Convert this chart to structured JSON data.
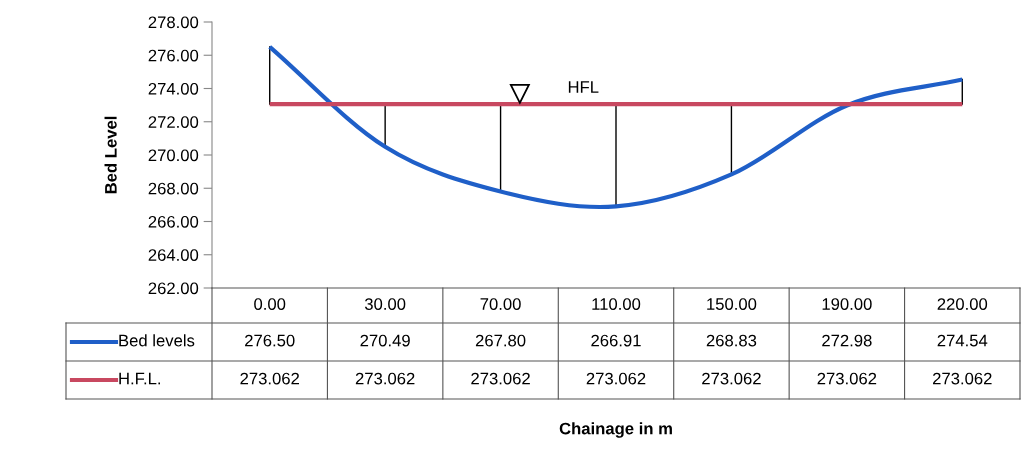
{
  "chart_data": {
    "type": "line",
    "ylabel": "Bed Level",
    "categories": [
      "0.00",
      "30.00",
      "70.00",
      "110.00",
      "150.00",
      "190.00",
      "220.00"
    ],
    "series": [
      {
        "name": "Bed levels",
        "color": "#1f5fc8",
        "values": [
          276.5,
          270.49,
          267.8,
          266.91,
          268.83,
          272.98,
          274.54
        ],
        "value_labels": [
          "276.50",
          "270.49",
          "267.80",
          "266.91",
          "268.83",
          "272.98",
          "274.54"
        ],
        "errors": [
          [
            273.062,
            276.5
          ],
          [
            270.49,
            273.062
          ],
          [
            267.8,
            273.062
          ],
          [
            266.91,
            273.062
          ],
          [
            268.83,
            273.062
          ],
          null,
          [
            273.062,
            274.54
          ]
        ]
      },
      {
        "name": "H.F.L.",
        "color": "#c84860",
        "values": [
          273.062,
          273.062,
          273.062,
          273.062,
          273.062,
          273.062,
          273.062
        ],
        "value_labels": [
          "273.062",
          "273.062",
          "273.062",
          "273.062",
          "273.062",
          "273.062",
          "273.062"
        ]
      }
    ],
    "ylim": [
      262,
      278
    ],
    "yticks": [
      {
        "value": 262,
        "label": "262.00"
      },
      {
        "value": 264,
        "label": "264.00"
      },
      {
        "value": 266,
        "label": "266.00"
      },
      {
        "value": 268,
        "label": "268.00"
      },
      {
        "value": 270,
        "label": "270.00"
      },
      {
        "value": 272,
        "label": "272.00"
      },
      {
        "value": 274,
        "label": "274.00"
      },
      {
        "value": 276,
        "label": "276.00"
      },
      {
        "value": 278,
        "label": "278.00"
      }
    ],
    "annotations": [
      "HFL",
      "Chainage in m"
    ],
    "grid": false,
    "legend": "bottom left",
    "marker": "none",
    "line_style": "solid"
  }
}
